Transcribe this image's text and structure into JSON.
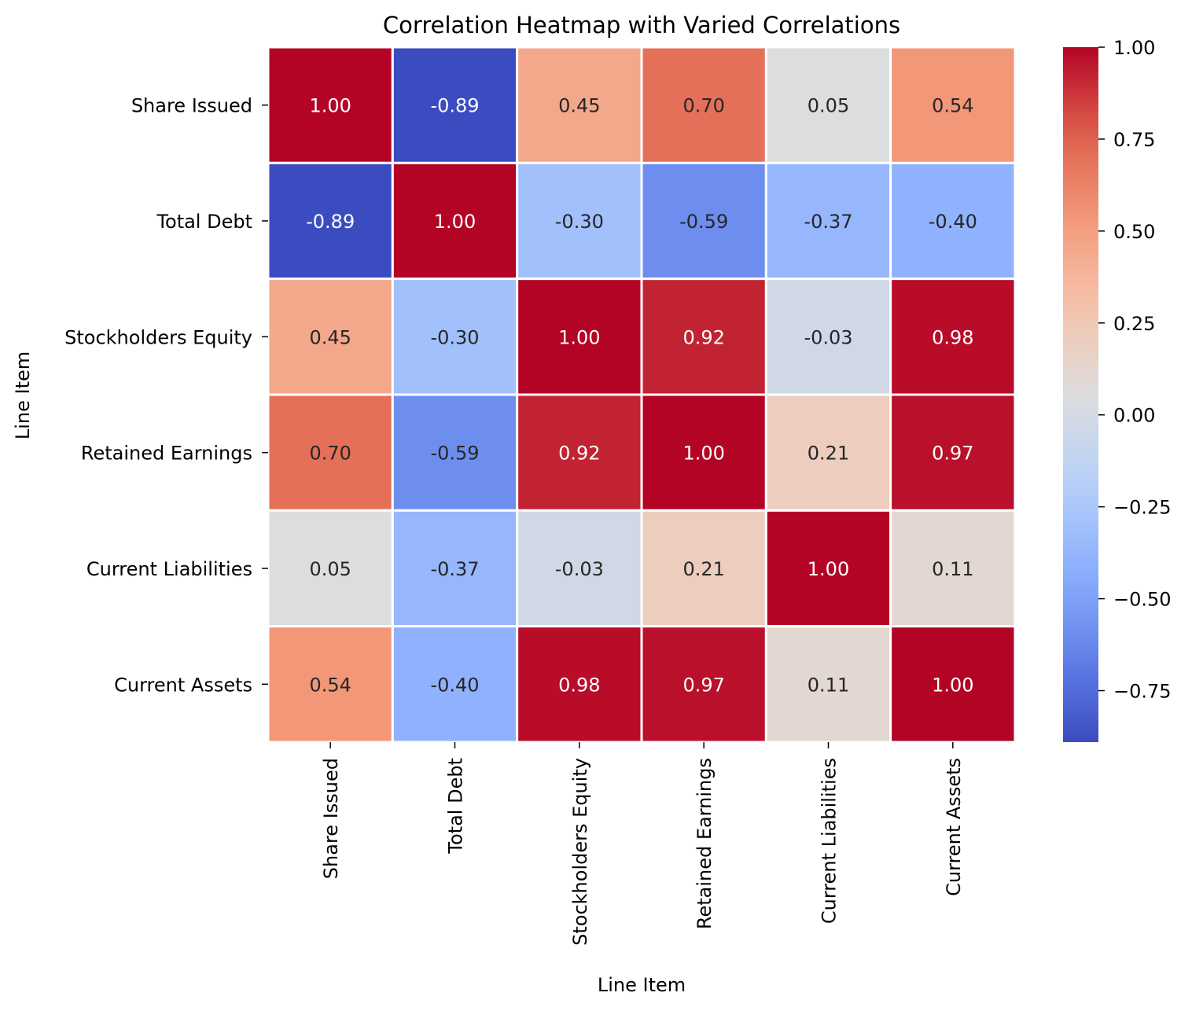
{
  "chart_data": {
    "type": "heatmap",
    "title": "Correlation Heatmap with Varied Correlations",
    "xlabel": "Line Item",
    "ylabel": "Line Item",
    "x_categories": [
      "Share Issued",
      "Total Debt",
      "Stockholders Equity",
      "Retained Earnings",
      "Current Liabilities",
      "Current Assets"
    ],
    "y_categories": [
      "Share Issued",
      "Total Debt",
      "Stockholders Equity",
      "Retained Earnings",
      "Current Liabilities",
      "Current Assets"
    ],
    "values": [
      [
        1.0,
        -0.89,
        0.45,
        0.7,
        0.05,
        0.54
      ],
      [
        -0.89,
        1.0,
        -0.3,
        -0.59,
        -0.37,
        -0.4
      ],
      [
        0.45,
        -0.3,
        1.0,
        0.92,
        -0.03,
        0.98
      ],
      [
        0.7,
        -0.59,
        0.92,
        1.0,
        0.21,
        0.97
      ],
      [
        0.05,
        -0.37,
        -0.03,
        0.21,
        1.0,
        0.11
      ],
      [
        0.54,
        -0.4,
        0.98,
        0.97,
        0.11,
        1.0
      ]
    ],
    "cell_labels": [
      [
        "1.00",
        "-0.89",
        "0.45",
        "0.70",
        "0.05",
        "0.54"
      ],
      [
        "-0.89",
        "1.00",
        "-0.30",
        "-0.59",
        "-0.37",
        "-0.40"
      ],
      [
        "0.45",
        "-0.30",
        "1.00",
        "0.92",
        "-0.03",
        "0.98"
      ],
      [
        "0.70",
        "-0.59",
        "0.92",
        "1.00",
        "0.21",
        "0.97"
      ],
      [
        "0.05",
        "-0.37",
        "-0.03",
        "0.21",
        "1.00",
        "0.11"
      ],
      [
        "0.54",
        "-0.40",
        "0.98",
        "0.97",
        "0.11",
        "1.00"
      ]
    ],
    "colormap": "coolwarm",
    "vmin": -0.89,
    "vmax": 1.0,
    "colorbar": {
      "ticks": [
        1.0,
        0.75,
        0.5,
        0.25,
        0.0,
        -0.25,
        -0.5,
        -0.75
      ],
      "tick_labels": [
        "1.00",
        "0.75",
        "0.50",
        "0.25",
        "0.00",
        "−0.25",
        "−0.50",
        "−0.75"
      ]
    },
    "cell_border_color": "#ffffff",
    "annotation_colors": {
      "dark": "#262626",
      "light": "#ffffff"
    }
  }
}
